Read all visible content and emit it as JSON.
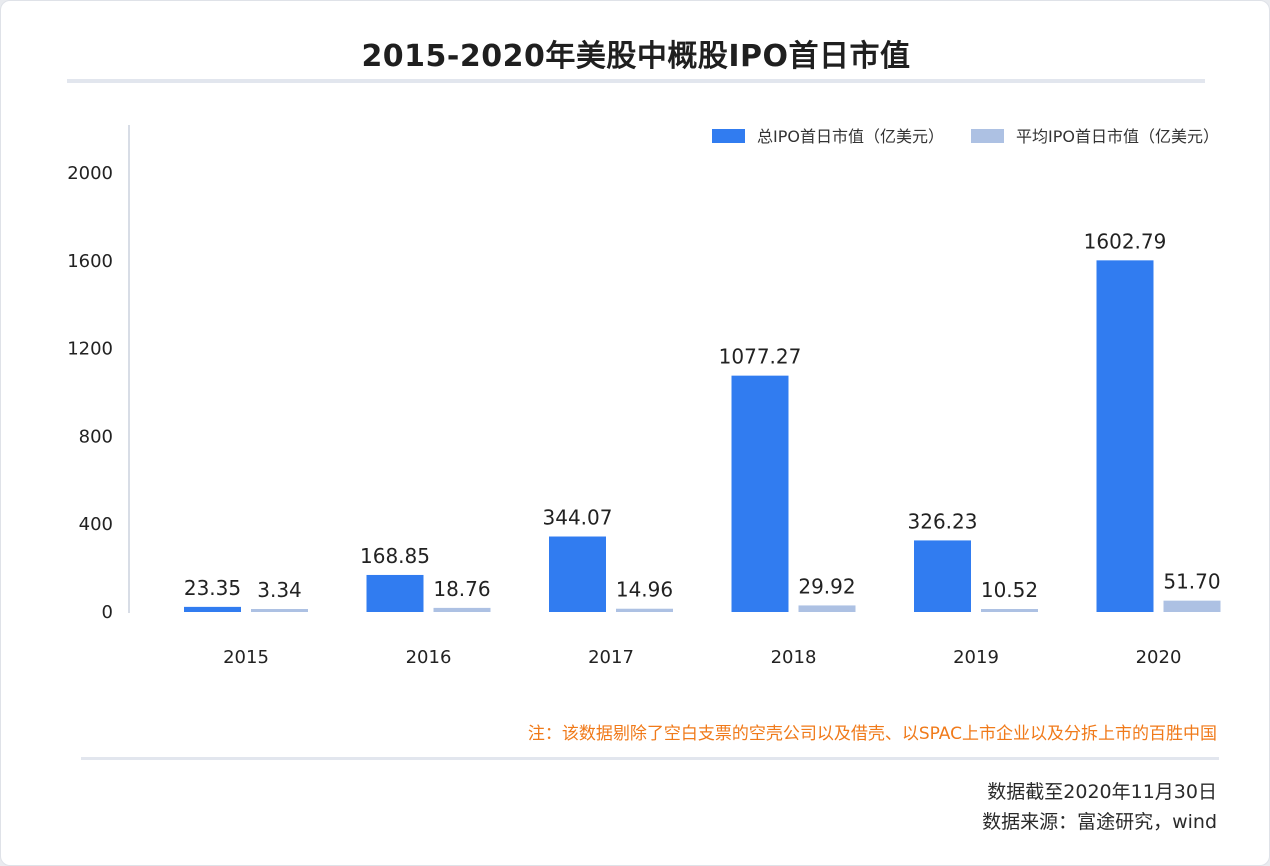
{
  "page": {
    "title": "2015-2020年美股中概股IPO首日市值",
    "note": "注：该数据剔除了空白支票的空壳公司以及借壳、以SPAC上市企业以及分拆上市的百胜中国",
    "date": "数据截至2020年11月30日",
    "source": "数据来源：富途研究，wind"
  },
  "colors": {
    "series1": "#317cf0",
    "series2": "#adc1e3",
    "note": "#f07a1a"
  },
  "chart_data": {
    "type": "bar",
    "title": "2015-2020年美股中概股IPO首日市值",
    "xlabel": "",
    "ylabel": "",
    "categories": [
      "2015",
      "2016",
      "2017",
      "2018",
      "2019",
      "2020"
    ],
    "series": [
      {
        "name": "总IPO首日市值（亿美元）",
        "values": [
          23.35,
          168.85,
          344.07,
          1077.27,
          326.23,
          1602.79
        ],
        "labels": [
          "23.35",
          "168.85",
          "344.07",
          "1077.27",
          "326.23",
          "1602.79"
        ]
      },
      {
        "name": "平均IPO首日市值（亿美元）",
        "values": [
          3.34,
          18.76,
          14.96,
          29.92,
          10.52,
          51.7
        ],
        "labels": [
          "3.34",
          "18.76",
          "14.96",
          "29.92",
          "10.52",
          "51.70"
        ]
      }
    ],
    "yticks": [
      0,
      400,
      800,
      1200,
      1600,
      2000
    ],
    "ylim": [
      0,
      2200
    ],
    "grid": false,
    "legend_position": "top-right"
  }
}
